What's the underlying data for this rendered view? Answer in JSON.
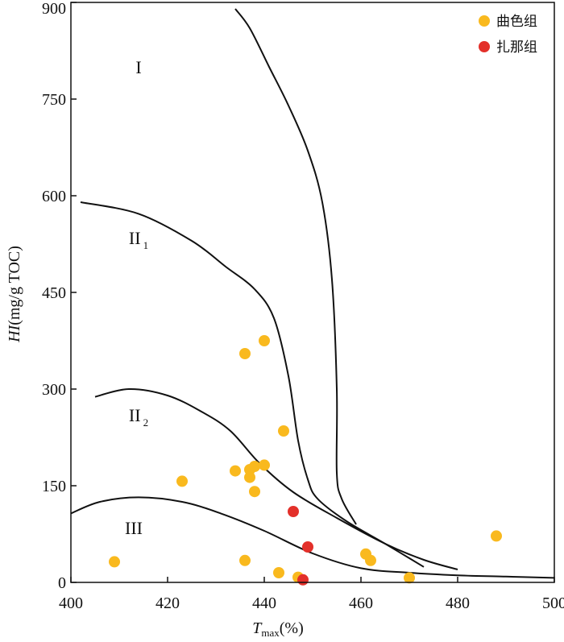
{
  "chart_data": {
    "type": "scatter",
    "xlabel": {
      "symbol": "T",
      "subscript": "max",
      "unit": "(%)"
    },
    "ylabel": {
      "symbol": "HI",
      "unit": "(mg/g TOC)"
    },
    "xlim": [
      400,
      500
    ],
    "ylim": [
      0,
      900
    ],
    "x_ticks": [
      400,
      420,
      440,
      460,
      480,
      500
    ],
    "y_ticks": [
      0,
      150,
      300,
      450,
      600,
      750,
      900
    ],
    "grid": false,
    "legend_position": "top-right",
    "series": [
      {
        "name": "曲色组",
        "color": "#F9B91E",
        "points": [
          [
            409,
            32
          ],
          [
            423,
            157
          ],
          [
            434,
            173
          ],
          [
            436,
            355
          ],
          [
            436,
            34
          ],
          [
            437,
            175
          ],
          [
            437,
            163
          ],
          [
            438,
            180
          ],
          [
            438,
            141
          ],
          [
            440,
            375
          ],
          [
            440,
            182
          ],
          [
            443,
            15
          ],
          [
            444,
            235
          ],
          [
            447,
            8
          ],
          [
            461,
            44
          ],
          [
            462,
            34
          ],
          [
            470,
            7
          ],
          [
            488,
            72
          ]
        ]
      },
      {
        "name": "扎那组",
        "color": "#E3302A",
        "points": [
          [
            446,
            110
          ],
          [
            448,
            4
          ],
          [
            449,
            55
          ]
        ]
      }
    ],
    "boundary_curves": [
      {
        "id": "I-II1",
        "points": [
          [
            434,
            890
          ],
          [
            437,
            860
          ],
          [
            441,
            800
          ],
          [
            445,
            740
          ],
          [
            449,
            670
          ],
          [
            452,
            590
          ],
          [
            454,
            470
          ],
          [
            455,
            300
          ],
          [
            455,
            170
          ],
          [
            456,
            130
          ],
          [
            459,
            90
          ]
        ]
      },
      {
        "id": "II1-II2",
        "points": [
          [
            402,
            590
          ],
          [
            414,
            572
          ],
          [
            425,
            530
          ],
          [
            432,
            490
          ],
          [
            438,
            455
          ],
          [
            442,
            410
          ],
          [
            445,
            320
          ],
          [
            447,
            220
          ],
          [
            449,
            160
          ],
          [
            451,
            130
          ],
          [
            457,
            95
          ],
          [
            465,
            60
          ],
          [
            473,
            24
          ]
        ]
      },
      {
        "id": "II2-III",
        "points": [
          [
            405,
            288
          ],
          [
            412,
            300
          ],
          [
            420,
            290
          ],
          [
            427,
            265
          ],
          [
            433,
            235
          ],
          [
            439,
            185
          ],
          [
            446,
            140
          ],
          [
            455,
            100
          ],
          [
            465,
            60
          ],
          [
            473,
            35
          ],
          [
            480,
            20
          ]
        ]
      },
      {
        "id": "III-lower",
        "points": [
          [
            400,
            107
          ],
          [
            406,
            125
          ],
          [
            414,
            132
          ],
          [
            423,
            125
          ],
          [
            431,
            107
          ],
          [
            440,
            80
          ],
          [
            450,
            45
          ],
          [
            460,
            22
          ],
          [
            470,
            15
          ],
          [
            480,
            11
          ],
          [
            490,
            9
          ],
          [
            500,
            7
          ]
        ]
      }
    ],
    "region_labels": [
      {
        "text": "I",
        "subscript": "",
        "x": 414,
        "y": 790
      },
      {
        "text": "II",
        "subscript": "1",
        "x": 414,
        "y": 525
      },
      {
        "text": "II",
        "subscript": "2",
        "x": 414,
        "y": 250
      },
      {
        "text": "III",
        "subscript": "",
        "x": 413,
        "y": 75
      }
    ]
  }
}
